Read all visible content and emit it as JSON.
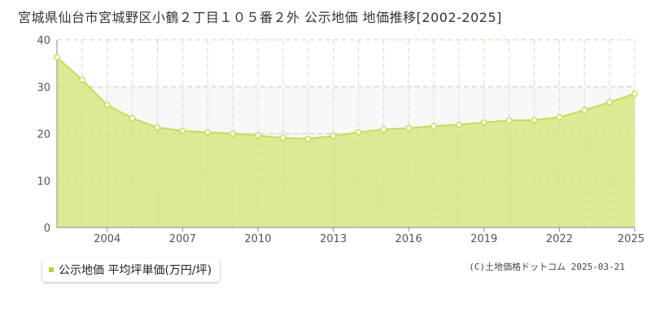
{
  "title": "宮城県仙台市宮城野区小鶴２丁目１０５番２外 公示地価 地価推移[2002-2025]",
  "credit": "(C)土地価格ドットコム 2025-03-21",
  "legend": {
    "label": "公示地価 平均坪単価(万円/坪)"
  },
  "colors": {
    "area_fill": "#dbeb95",
    "line": "#c2dd5a",
    "upper_fill": "#f8f8f8",
    "legend_swatch": "#b6d53a"
  },
  "chart_data": {
    "type": "area",
    "x": [
      2002,
      2003,
      2004,
      2005,
      2006,
      2007,
      2008,
      2009,
      2010,
      2011,
      2012,
      2013,
      2014,
      2015,
      2016,
      2017,
      2018,
      2019,
      2020,
      2021,
      2022,
      2023,
      2024,
      2025
    ],
    "series": [
      {
        "name": "公示地価 平均坪単価(万円/坪)",
        "values": [
          36.3,
          31.5,
          26.1,
          23.3,
          21.3,
          20.6,
          20.3,
          20.0,
          19.6,
          19.1,
          18.9,
          19.5,
          20.3,
          20.9,
          21.2,
          21.6,
          21.9,
          22.4,
          22.8,
          22.9,
          23.5,
          25.0,
          26.7,
          28.5
        ]
      }
    ],
    "xticks": [
      2004,
      2007,
      2010,
      2013,
      2016,
      2019,
      2022,
      2025
    ],
    "yticks": [
      0,
      10,
      20,
      30,
      40
    ],
    "xlim": [
      2002,
      2025
    ],
    "ylim": [
      0,
      40
    ],
    "xlabel": "",
    "ylabel": "",
    "grid": true
  }
}
